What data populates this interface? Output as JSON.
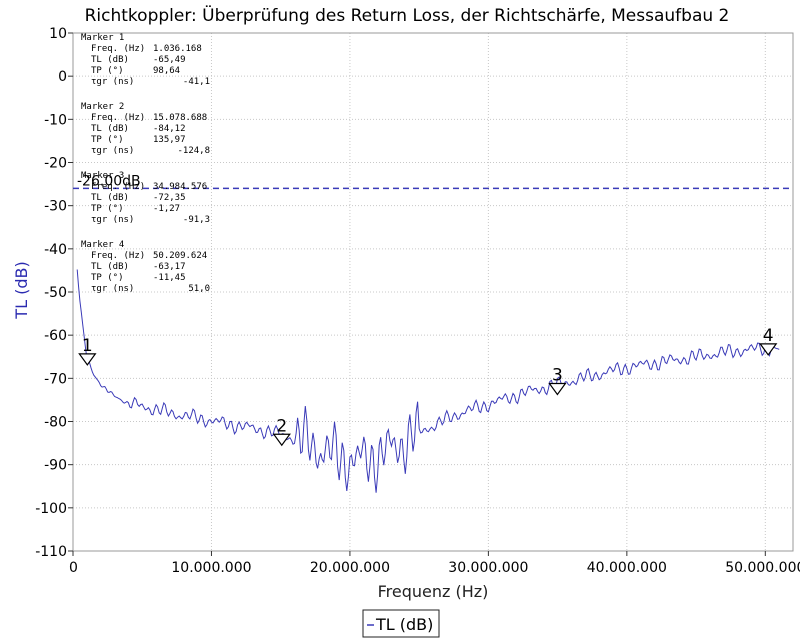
{
  "chart_data": {
    "type": "line",
    "title": "Richtkoppler: Überprüfung des Return Loss, der Richtschärfe, Messaufbau 2",
    "xlabel": "Frequenz (Hz)",
    "ylabel": "TL (dB)",
    "xlim": [
      0,
      52000000
    ],
    "ylim": [
      -110,
      10
    ],
    "x_ticks": [
      0,
      10000000,
      20000000,
      30000000,
      40000000,
      50000000
    ],
    "x_tick_labels": [
      "0",
      "10.000.000",
      "20.000.000",
      "30.000.000",
      "40.000.000",
      "50.000.000"
    ],
    "y_ticks": [
      10,
      0,
      -10,
      -20,
      -30,
      -40,
      -50,
      -60,
      -70,
      -80,
      -90,
      -100,
      -110
    ],
    "y_tick_labels": [
      "10",
      "0",
      "-10",
      "-20",
      "-30",
      "-40",
      "-50",
      "-60",
      "-70",
      "-80",
      "-90",
      "-100",
      "-110"
    ],
    "grid": true,
    "series": [
      {
        "name": "TL (dB)",
        "color": "#3a3ab8",
        "x": [
          300000,
          500000,
          700000,
          1000000,
          1500000,
          2000000,
          2500000,
          3000000,
          3500000,
          4000000,
          5000000,
          6000000,
          7000000,
          8000000,
          9000000,
          10000000,
          11000000,
          12000000,
          13000000,
          14000000,
          15000000,
          16000000,
          17000000,
          18000000,
          19000000,
          20000000,
          21000000,
          22000000,
          23000000,
          24000000,
          25000000,
          26000000,
          27000000,
          28000000,
          29000000,
          30000000,
          31000000,
          32000000,
          33000000,
          34000000,
          35000000,
          36000000,
          37000000,
          38000000,
          39000000,
          40000000,
          41000000,
          42000000,
          43000000,
          44000000,
          45000000,
          46000000,
          47000000,
          48000000,
          49000000,
          50000000,
          50500000,
          51000000
        ],
        "y": [
          -45,
          -52,
          -58,
          -65,
          -69,
          -71.5,
          -73,
          -74,
          -75,
          -75.8,
          -76.5,
          -77.2,
          -78,
          -78.6,
          -79.2,
          -79.8,
          -80.5,
          -81,
          -81.6,
          -82.2,
          -83,
          -84,
          -85,
          -86.5,
          -88,
          -89,
          -89,
          -88,
          -86.5,
          -84.5,
          -82.5,
          -81,
          -79.5,
          -78,
          -77,
          -76,
          -75,
          -74,
          -73,
          -72.2,
          -71.5,
          -70.6,
          -69.8,
          -69,
          -68.2,
          -67.5,
          -67,
          -66.5,
          -66,
          -65.5,
          -65,
          -64.5,
          -64,
          -63.6,
          -63.3,
          -63,
          -62.8,
          -63.3
        ]
      }
    ],
    "reference_line": {
      "y": -26,
      "label": "-26.00dB",
      "color": "#3a3ab8",
      "style": "dashed"
    },
    "markers": [
      {
        "id": "1",
        "x": 1036168,
        "y": -65.49,
        "freq_label": "Freq. (Hz)",
        "freq": "1.036.168",
        "tl_label": "TL (dB)",
        "tl": "-65,49",
        "tp_label": "TP (°)",
        "tp": "98,64",
        "tgr_label": "τgr (ns)",
        "tgr": "-41,1"
      },
      {
        "id": "2",
        "x": 15078688,
        "y": -84.12,
        "freq_label": "Freq. (Hz)",
        "freq": "15.078.688",
        "tl_label": "TL (dB)",
        "tl": "-84,12",
        "tp_label": "TP (°)",
        "tp": "135,97",
        "tgr_label": "τgr (ns)",
        "tgr": "-124,8"
      },
      {
        "id": "3",
        "x": 34984576,
        "y": -72.35,
        "freq_label": "Freq. (Hz)",
        "freq": "34.984.576",
        "tl_label": "TL (dB)",
        "tl": "-72,35",
        "tp_label": "TP (°)",
        "tp": "-1,27",
        "tgr_label": "τgr (ns)",
        "tgr": "-91,3"
      },
      {
        "id": "4",
        "x": 50209624,
        "y": -63.17,
        "freq_label": "Freq. (Hz)",
        "freq": "50.209.624",
        "tl_label": "TL (dB)",
        "tl": "-63,17",
        "tp_label": "TP (°)",
        "tp": "-11,45",
        "tgr_label": "τgr (ns)",
        "tgr": "51,0"
      }
    ],
    "marker_title_prefix": "Marker",
    "legend": {
      "placement": "bottom-center",
      "entries": [
        "TL (dB)"
      ]
    }
  }
}
